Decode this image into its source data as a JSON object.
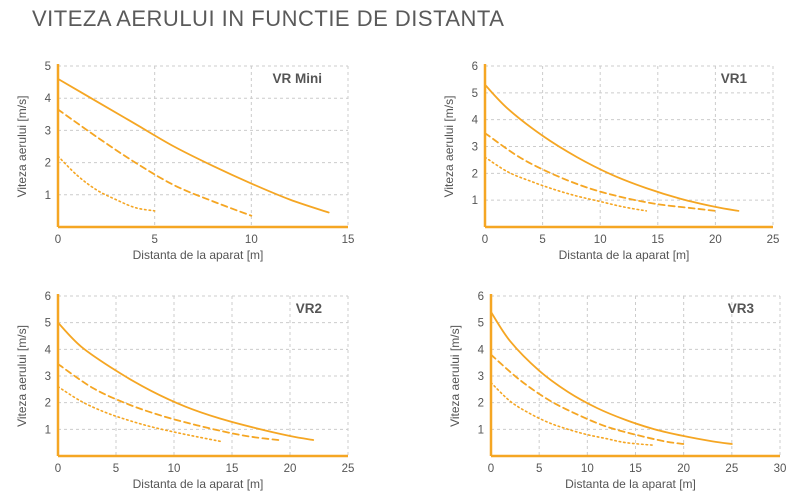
{
  "page": {
    "title": "VITEZA AERULUI IN FUNCTIE DE DISTANTA"
  },
  "colors": {
    "accent": "#f5a623",
    "grid": "#cccccc",
    "text": "#555555"
  },
  "chart_data": [
    {
      "type": "line",
      "title": "VR Mini",
      "xlabel": "Distanta de la aparat [m]",
      "ylabel": "Viteza aerului [m/s]",
      "xlim": [
        0,
        15
      ],
      "ylim": [
        0,
        5
      ],
      "xticks": [
        0,
        5,
        10,
        15
      ],
      "yticks": [
        1,
        2,
        3,
        4,
        5
      ],
      "grid": true,
      "series": [
        {
          "style": "solid",
          "x": [
            0,
            2,
            4,
            6,
            8,
            10,
            12,
            14
          ],
          "y": [
            4.6,
            3.9,
            3.2,
            2.5,
            1.9,
            1.35,
            0.85,
            0.45
          ]
        },
        {
          "style": "dashed",
          "x": [
            0,
            2,
            4,
            6,
            8,
            10
          ],
          "y": [
            3.65,
            2.8,
            2.0,
            1.3,
            0.8,
            0.35
          ]
        },
        {
          "style": "dotted",
          "x": [
            0,
            1,
            2,
            3,
            4,
            5
          ],
          "y": [
            2.2,
            1.6,
            1.15,
            0.85,
            0.6,
            0.5
          ]
        }
      ]
    },
    {
      "type": "line",
      "title": "VR1",
      "xlabel": "Distanta de la aparat [m]",
      "ylabel": "Viteza aerului [m/s]",
      "xlim": [
        0,
        25
      ],
      "ylim": [
        0,
        6
      ],
      "xticks": [
        0,
        5,
        10,
        15,
        20,
        25
      ],
      "yticks": [
        1,
        2,
        3,
        4,
        5,
        6
      ],
      "grid": true,
      "series": [
        {
          "style": "solid",
          "x": [
            0,
            2,
            5,
            8,
            11,
            14,
            17,
            20,
            22
          ],
          "y": [
            5.3,
            4.4,
            3.4,
            2.6,
            1.95,
            1.45,
            1.05,
            0.75,
            0.6
          ]
        },
        {
          "style": "dashed",
          "x": [
            0,
            3,
            6,
            9,
            12,
            15,
            18,
            20
          ],
          "y": [
            3.5,
            2.6,
            1.95,
            1.45,
            1.1,
            0.85,
            0.7,
            0.6
          ]
        },
        {
          "style": "dotted",
          "x": [
            0,
            2,
            4,
            6,
            8,
            10,
            12,
            14
          ],
          "y": [
            2.6,
            2.05,
            1.7,
            1.4,
            1.15,
            0.95,
            0.75,
            0.6
          ]
        }
      ]
    },
    {
      "type": "line",
      "title": "VR2",
      "xlabel": "Distanta de la aparat [m]",
      "ylabel": "Viteza aerului [m/s]",
      "xlim": [
        0,
        25
      ],
      "ylim": [
        0,
        6
      ],
      "xticks": [
        0,
        5,
        10,
        15,
        20,
        25
      ],
      "yticks": [
        1,
        2,
        3,
        4,
        5,
        6
      ],
      "grid": true,
      "series": [
        {
          "style": "solid",
          "x": [
            0,
            2,
            5,
            8,
            11,
            14,
            17,
            20,
            22
          ],
          "y": [
            5.0,
            4.1,
            3.2,
            2.45,
            1.85,
            1.4,
            1.05,
            0.75,
            0.6
          ]
        },
        {
          "style": "dashed",
          "x": [
            0,
            3,
            6,
            9,
            12,
            15,
            17,
            19
          ],
          "y": [
            3.45,
            2.55,
            1.95,
            1.5,
            1.15,
            0.85,
            0.7,
            0.6
          ]
        },
        {
          "style": "dotted",
          "x": [
            0,
            2,
            4,
            6,
            8,
            10,
            12,
            14
          ],
          "y": [
            2.6,
            2.05,
            1.65,
            1.35,
            1.1,
            0.9,
            0.72,
            0.55
          ]
        }
      ]
    },
    {
      "type": "line",
      "title": "VR3",
      "xlabel": "Distanta de la aparat [m]",
      "ylabel": "Viteza aerului [m/s]",
      "xlim": [
        0,
        30
      ],
      "ylim": [
        0,
        6
      ],
      "xticks": [
        0,
        5,
        10,
        15,
        20,
        25,
        30
      ],
      "yticks": [
        1,
        2,
        3,
        4,
        5,
        6
      ],
      "grid": true,
      "series": [
        {
          "style": "solid",
          "x": [
            0,
            2,
            5,
            8,
            11,
            14,
            17,
            20,
            23,
            25
          ],
          "y": [
            5.4,
            4.3,
            3.2,
            2.4,
            1.8,
            1.35,
            1.0,
            0.75,
            0.55,
            0.45
          ]
        },
        {
          "style": "dashed",
          "x": [
            0,
            3,
            6,
            9,
            12,
            15,
            18,
            20
          ],
          "y": [
            3.8,
            2.85,
            2.1,
            1.55,
            1.1,
            0.8,
            0.55,
            0.45
          ]
        },
        {
          "style": "dotted",
          "x": [
            0,
            2,
            4,
            6,
            8,
            10,
            12,
            14,
            17
          ],
          "y": [
            2.75,
            2.05,
            1.6,
            1.25,
            1.0,
            0.8,
            0.65,
            0.5,
            0.4
          ]
        }
      ]
    }
  ]
}
